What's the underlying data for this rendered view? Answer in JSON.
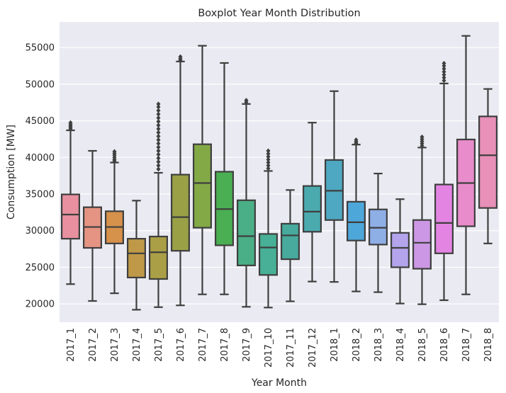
{
  "chart_data": {
    "type": "boxplot",
    "title": "Boxplot Year Month Distribution",
    "xlabel": "Year Month",
    "ylabel": "Consumption [MW]",
    "ylim": [
      17500,
      58500
    ],
    "yticks": [
      20000,
      25000,
      30000,
      35000,
      40000,
      45000,
      50000,
      55000
    ],
    "grid": true,
    "legend": "none",
    "categories": [
      "2017_1",
      "2017_2",
      "2017_3",
      "2017_4",
      "2017_5",
      "2017_6",
      "2017_7",
      "2017_8",
      "2017_9",
      "2017_10",
      "2017_11",
      "2017_12",
      "2018_1",
      "2018_2",
      "2018_3",
      "2018_4",
      "2018_5",
      "2018_6",
      "2018_7",
      "2018_8"
    ],
    "boxes": [
      {
        "category": "2017_1",
        "whisker_low": 22700,
        "q1": 28900,
        "median": 32200,
        "q3": 34950,
        "whisker_high": 43700,
        "outliers": [
          43900,
          44100,
          44300,
          44500,
          44750
        ],
        "color": "#e8909f"
      },
      {
        "category": "2017_2",
        "whisker_low": 20400,
        "q1": 27650,
        "median": 30500,
        "q3": 33200,
        "whisker_high": 40900,
        "outliers": [],
        "color": "#e59382"
      },
      {
        "category": "2017_3",
        "whisker_low": 21450,
        "q1": 28250,
        "median": 30500,
        "q3": 32650,
        "whisker_high": 39300,
        "outliers": [
          39500,
          39700,
          40000,
          40300,
          40550,
          40800
        ],
        "color": "#d6914b"
      },
      {
        "category": "2017_4",
        "whisker_low": 19200,
        "q1": 23600,
        "median": 26900,
        "q3": 28900,
        "whisker_high": 34100,
        "outliers": [],
        "color": "#bf9947"
      },
      {
        "category": "2017_5",
        "whisker_low": 19550,
        "q1": 23400,
        "median": 27050,
        "q3": 29200,
        "whisker_high": 37900,
        "outliers": [
          38400,
          38900,
          39400,
          39900,
          40400,
          40900,
          41400,
          41900,
          42400,
          42900,
          43400,
          43900,
          44400,
          44900,
          45400,
          45900,
          46400,
          46900,
          47300
        ],
        "color": "#aa9f46"
      },
      {
        "category": "2017_6",
        "whisker_low": 19800,
        "q1": 27250,
        "median": 31850,
        "q3": 37650,
        "whisker_high": 53100,
        "outliers": [
          53300,
          53500,
          53750
        ],
        "color": "#99a046"
      },
      {
        "category": "2017_7",
        "whisker_low": 21300,
        "q1": 30400,
        "median": 36500,
        "q3": 41800,
        "whisker_high": 55250,
        "outliers": [],
        "color": "#83a947"
      },
      {
        "category": "2017_8",
        "whisker_low": 21300,
        "q1": 28000,
        "median": 32950,
        "q3": 38050,
        "whisker_high": 52900,
        "outliers": [],
        "color": "#4aaf52"
      },
      {
        "category": "2017_9",
        "whisker_low": 19600,
        "q1": 25250,
        "median": 29250,
        "q3": 34150,
        "whisker_high": 47300,
        "outliers": [
          47550,
          47800
        ],
        "color": "#4aaf86"
      },
      {
        "category": "2017_10",
        "whisker_low": 19500,
        "q1": 23950,
        "median": 27700,
        "q3": 29550,
        "whisker_high": 38150,
        "outliers": [
          38500,
          38900,
          39300,
          39700,
          40100,
          40500,
          40900
        ],
        "color": "#47b096"
      },
      {
        "category": "2017_11",
        "whisker_low": 20350,
        "q1": 26100,
        "median": 29350,
        "q3": 30950,
        "whisker_high": 35550,
        "outliers": [],
        "color": "#47aa9c"
      },
      {
        "category": "2017_12",
        "whisker_low": 23050,
        "q1": 29850,
        "median": 32600,
        "q3": 36100,
        "whisker_high": 44750,
        "outliers": [],
        "color": "#4aaaae"
      },
      {
        "category": "2018_1",
        "whisker_low": 23000,
        "q1": 31450,
        "median": 35450,
        "q3": 39650,
        "whisker_high": 49050,
        "outliers": [],
        "color": "#4ea8c1"
      },
      {
        "category": "2018_2",
        "whisker_low": 21700,
        "q1": 28650,
        "median": 31150,
        "q3": 33950,
        "whisker_high": 41750,
        "outliers": [
          41950,
          42150,
          42400
        ],
        "color": "#4ea7d9"
      },
      {
        "category": "2018_3",
        "whisker_low": 21600,
        "q1": 28100,
        "median": 30400,
        "q3": 32900,
        "whisker_high": 37800,
        "outliers": [],
        "color": "#8eaee6"
      },
      {
        "category": "2018_4",
        "whisker_low": 20050,
        "q1": 25000,
        "median": 27650,
        "q3": 29700,
        "whisker_high": 34300,
        "outliers": [],
        "color": "#b3a4ec"
      },
      {
        "category": "2018_5",
        "whisker_low": 19950,
        "q1": 24800,
        "median": 28350,
        "q3": 31450,
        "whisker_high": 41350,
        "outliers": [
          41600,
          41900,
          42200,
          42500,
          42800
        ],
        "color": "#cc98e5"
      },
      {
        "category": "2018_6",
        "whisker_low": 20500,
        "q1": 26900,
        "median": 31050,
        "q3": 36300,
        "whisker_high": 50100,
        "outliers": [
          50500,
          50900,
          51300,
          51700,
          52100,
          52500,
          52850
        ],
        "color": "#e384e3"
      },
      {
        "category": "2018_7",
        "whisker_low": 21300,
        "q1": 30600,
        "median": 36500,
        "q3": 42450,
        "whisker_high": 56600,
        "outliers": [],
        "color": "#e98ccb"
      },
      {
        "category": "2018_8",
        "whisker_low": 28250,
        "q1": 33100,
        "median": 40300,
        "q3": 45600,
        "whisker_high": 49350,
        "outliers": [],
        "color": "#e890b8"
      }
    ]
  },
  "style": {
    "plot_background": "#eaeaf2",
    "grid_color": "#ffffff",
    "line_color": "#3f3f3f",
    "text_color": "#262626"
  }
}
